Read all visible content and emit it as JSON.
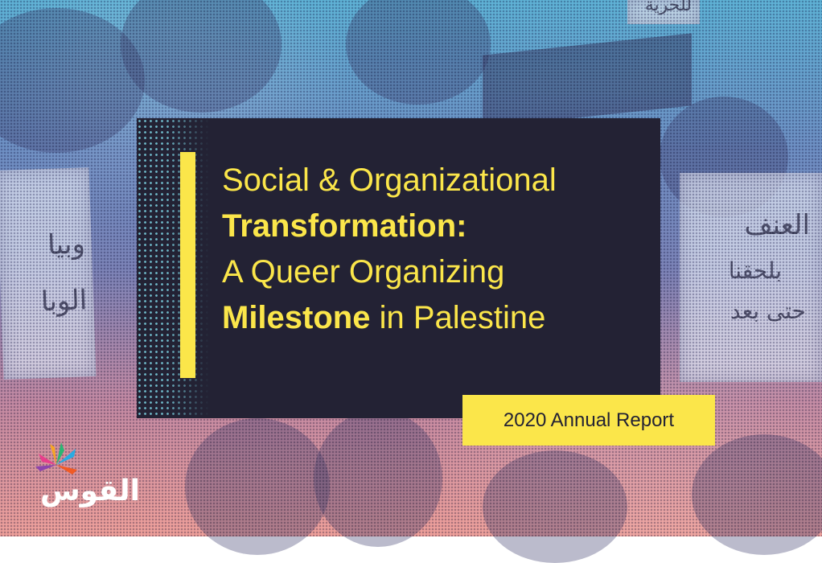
{
  "cover": {
    "title_line1": "Social & Organizational",
    "title_line2_bold": "Transformation:",
    "title_line3": "A Queer Organizing",
    "title_line4_bold": "Milestone",
    "title_line4_rest": " in Palestine",
    "badge": "2020 Annual Report"
  },
  "signs": {
    "left_sign": "وبيا الوبا",
    "right_sign_line1": "العنف",
    "right_sign_line2": "بلحقنا",
    "right_sign_line3": "حتى بعد",
    "top_sign": "للحرية"
  },
  "logo": {
    "name": "القوس"
  },
  "colors": {
    "panel": "#232234",
    "accent_yellow": "#fbe64a",
    "gradient_top": "#5fb3d6",
    "gradient_bottom": "#f0a19b"
  }
}
